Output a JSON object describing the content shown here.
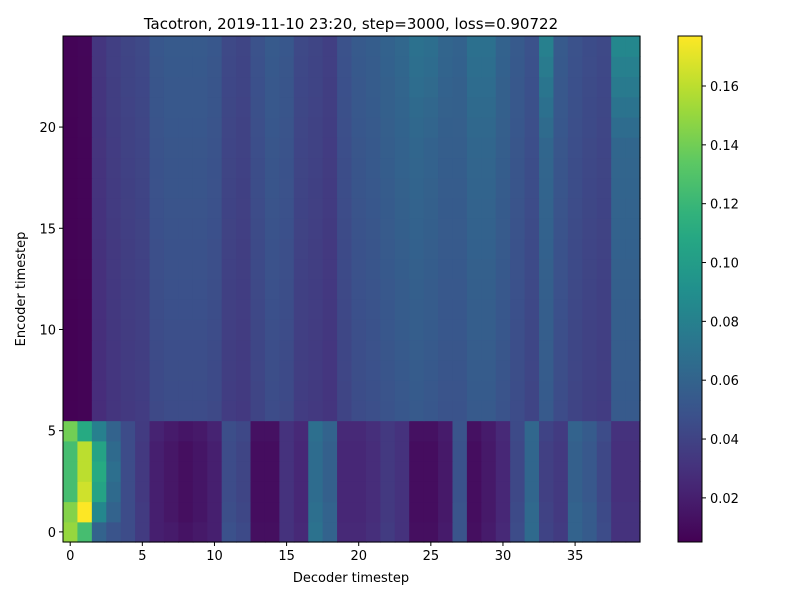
{
  "chart_data": {
    "type": "heatmap",
    "title": "Tacotron, 2019-11-10 23:20, step=3000, loss=0.90722",
    "xlabel": "Decoder timestep",
    "ylabel": "Encoder timestep",
    "xlim": [
      -0.5,
      39.5
    ],
    "ylim": [
      -0.5,
      24.5
    ],
    "xticks": [
      0,
      5,
      10,
      15,
      20,
      25,
      30,
      35
    ],
    "yticks": [
      0,
      5,
      10,
      15,
      20
    ],
    "colormap": "viridis",
    "colorbar": {
      "vmin": 0.005,
      "vmax": 0.177,
      "ticks": [
        0.02,
        0.04,
        0.06,
        0.08,
        0.1,
        0.12,
        0.14,
        0.16
      ]
    },
    "n_decoder_steps": 40,
    "n_encoder_steps": 25,
    "lower_rows_0_5": [
      [
        0.15,
        0.125,
        0.06,
        0.05,
        0.045,
        0.035,
        0.02,
        0.018,
        0.014,
        0.017,
        0.02,
        0.048,
        0.044,
        0.012,
        0.012,
        0.03,
        0.025,
        0.07,
        0.06,
        0.025,
        0.025,
        0.028,
        0.035,
        0.03,
        0.012,
        0.012,
        0.018,
        0.05,
        0.012,
        0.018,
        0.025,
        0.045,
        0.065,
        0.04,
        0.035,
        0.06,
        0.055,
        0.045,
        0.03,
        0.03
      ],
      [
        0.145,
        0.177,
        0.085,
        0.06,
        0.045,
        0.035,
        0.02,
        0.016,
        0.012,
        0.015,
        0.02,
        0.046,
        0.042,
        0.011,
        0.011,
        0.03,
        0.024,
        0.068,
        0.06,
        0.024,
        0.024,
        0.027,
        0.034,
        0.03,
        0.011,
        0.011,
        0.017,
        0.05,
        0.011,
        0.017,
        0.024,
        0.044,
        0.064,
        0.039,
        0.034,
        0.06,
        0.055,
        0.044,
        0.03,
        0.03
      ],
      [
        0.125,
        0.165,
        0.105,
        0.065,
        0.045,
        0.034,
        0.02,
        0.016,
        0.012,
        0.015,
        0.02,
        0.045,
        0.041,
        0.011,
        0.011,
        0.03,
        0.024,
        0.066,
        0.058,
        0.024,
        0.024,
        0.027,
        0.034,
        0.03,
        0.011,
        0.011,
        0.017,
        0.049,
        0.011,
        0.017,
        0.024,
        0.043,
        0.062,
        0.038,
        0.034,
        0.058,
        0.053,
        0.043,
        0.029,
        0.029
      ],
      [
        0.125,
        0.16,
        0.11,
        0.068,
        0.045,
        0.034,
        0.02,
        0.016,
        0.012,
        0.015,
        0.02,
        0.045,
        0.041,
        0.011,
        0.011,
        0.03,
        0.024,
        0.066,
        0.058,
        0.024,
        0.024,
        0.027,
        0.034,
        0.03,
        0.011,
        0.011,
        0.017,
        0.049,
        0.011,
        0.017,
        0.024,
        0.043,
        0.062,
        0.038,
        0.034,
        0.058,
        0.053,
        0.043,
        0.029,
        0.029
      ],
      [
        0.125,
        0.16,
        0.105,
        0.065,
        0.045,
        0.034,
        0.02,
        0.016,
        0.012,
        0.015,
        0.02,
        0.045,
        0.041,
        0.011,
        0.011,
        0.03,
        0.024,
        0.066,
        0.058,
        0.024,
        0.024,
        0.027,
        0.034,
        0.03,
        0.011,
        0.011,
        0.017,
        0.049,
        0.011,
        0.017,
        0.024,
        0.043,
        0.062,
        0.038,
        0.034,
        0.058,
        0.053,
        0.043,
        0.029,
        0.029
      ],
      [
        0.14,
        0.11,
        0.08,
        0.06,
        0.045,
        0.035,
        0.022,
        0.018,
        0.015,
        0.017,
        0.022,
        0.046,
        0.043,
        0.013,
        0.013,
        0.03,
        0.025,
        0.068,
        0.06,
        0.025,
        0.025,
        0.028,
        0.034,
        0.03,
        0.013,
        0.013,
        0.018,
        0.05,
        0.013,
        0.018,
        0.025,
        0.044,
        0.063,
        0.04,
        0.035,
        0.06,
        0.055,
        0.045,
        0.03,
        0.03
      ]
    ],
    "upper_rows_6_24_base": [
      0.006,
      0.007,
      0.03,
      0.035,
      0.038,
      0.04,
      0.048,
      0.05,
      0.05,
      0.05,
      0.048,
      0.04,
      0.038,
      0.045,
      0.05,
      0.048,
      0.04,
      0.038,
      0.035,
      0.045,
      0.05,
      0.052,
      0.055,
      0.058,
      0.06,
      0.058,
      0.055,
      0.055,
      0.06,
      0.06,
      0.055,
      0.05,
      0.045,
      0.06,
      0.05,
      0.045,
      0.042,
      0.04,
      0.06,
      0.06
    ],
    "upper_rows_6_24_top_adjust": [
      0.0,
      0.0,
      0.0,
      0.0,
      0.0,
      0.0,
      0.0,
      0.0,
      0.0,
      0.0,
      0.0,
      0.0,
      0.0,
      0.0,
      0.0,
      0.0,
      0.0,
      0.0,
      0.0,
      0.0,
      0.0,
      0.0,
      0.0,
      0.0,
      0.005,
      0.005,
      0.002,
      0.0,
      0.004,
      0.004,
      0.0,
      0.0,
      0.0,
      0.015,
      0.0,
      0.0,
      0.0,
      0.0,
      0.02,
      0.02
    ]
  }
}
